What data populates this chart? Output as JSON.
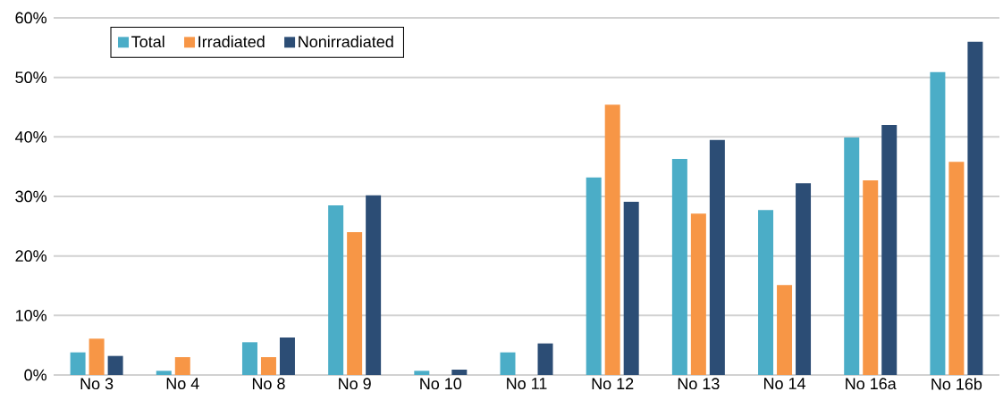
{
  "chart_data": {
    "type": "bar",
    "categories": [
      "No 3",
      "No 4",
      "No 8",
      "No 9",
      "No 10",
      "No 11",
      "No 12",
      "No 13",
      "No 14",
      "No 16a",
      "No 16b"
    ],
    "series": [
      {
        "name": "Total",
        "color": "#4badc7",
        "values": [
          3.8,
          0.7,
          5.5,
          28.5,
          0.7,
          3.8,
          33.2,
          36.3,
          27.7,
          39.9,
          50.9
        ]
      },
      {
        "name": "Irradiated",
        "color": "#f79646",
        "values": [
          6.1,
          3.0,
          3.0,
          24.0,
          null,
          null,
          45.4,
          27.1,
          15.1,
          32.7,
          35.8
        ]
      },
      {
        "name": "Nonirradiated",
        "color": "#2c4d75",
        "values": [
          3.2,
          null,
          6.3,
          30.2,
          0.9,
          5.3,
          29.1,
          39.5,
          32.2,
          42.0,
          56.0
        ]
      }
    ],
    "ylim": [
      0,
      60
    ],
    "yticks": [
      {
        "value": 0,
        "label": "0%"
      },
      {
        "value": 10,
        "label": "10%"
      },
      {
        "value": 20,
        "label": "20%"
      },
      {
        "value": 30,
        "label": "30%"
      },
      {
        "value": 40,
        "label": "40%"
      },
      {
        "value": 50,
        "label": "50%"
      },
      {
        "value": 60,
        "label": "60%"
      }
    ],
    "grid": "y",
    "legend": "top left"
  }
}
